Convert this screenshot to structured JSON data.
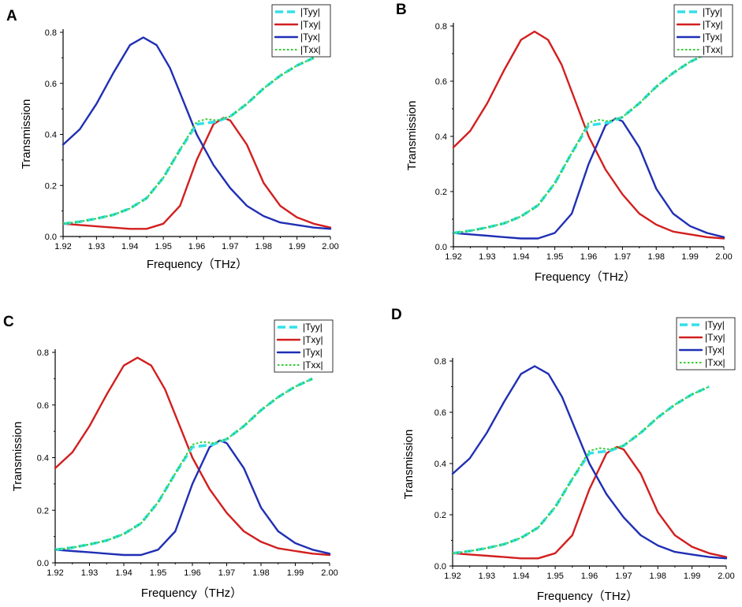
{
  "chart_data": [
    {
      "panel": "A",
      "type": "line",
      "xlabel": "Frequency（THz）",
      "ylabel": "Transmission",
      "xlim": [
        1.92,
        2.0
      ],
      "ylim": [
        0,
        0.8
      ],
      "xticks": [
        "1.92",
        "1.93",
        "1.94",
        "1.95",
        "1.96",
        "1.97",
        "1.98",
        "1.99",
        "2.00"
      ],
      "yticks": [
        "0.0",
        "0.2",
        "0.4",
        "0.6",
        "0.8"
      ],
      "legend_position": "top-right",
      "colors": {
        "Tyy": "#33e0e8",
        "Txy": "#d21f1f",
        "Tyx": "#1f2fb4",
        "Txx": "#33cc33"
      },
      "series": [
        {
          "name": "|Tyy|",
          "key": "Tyy",
          "x": [
            1.92,
            1.925,
            1.93,
            1.935,
            1.94,
            1.945,
            1.95,
            1.955,
            1.96,
            1.963,
            1.966,
            1.97,
            1.975,
            1.98,
            1.985,
            1.99,
            1.995
          ],
          "values": [
            0.05,
            0.058,
            0.07,
            0.085,
            0.11,
            0.15,
            0.23,
            0.34,
            0.44,
            0.445,
            0.45,
            0.47,
            0.52,
            0.58,
            0.63,
            0.67,
            0.7
          ]
        },
        {
          "name": "|Txy|",
          "key": "Txy",
          "x": [
            1.92,
            1.925,
            1.93,
            1.935,
            1.94,
            1.945,
            1.95,
            1.955,
            1.96,
            1.965,
            1.968,
            1.97,
            1.975,
            1.98,
            1.985,
            1.99,
            1.995,
            2.0
          ],
          "values": [
            0.05,
            0.045,
            0.04,
            0.035,
            0.03,
            0.03,
            0.05,
            0.12,
            0.3,
            0.44,
            0.465,
            0.455,
            0.36,
            0.21,
            0.12,
            0.075,
            0.05,
            0.035
          ]
        },
        {
          "name": "|Tyx|",
          "key": "Tyx",
          "x": [
            1.92,
            1.925,
            1.93,
            1.935,
            1.94,
            1.944,
            1.948,
            1.952,
            1.956,
            1.96,
            1.965,
            1.97,
            1.975,
            1.98,
            1.985,
            1.99,
            1.995,
            2.0
          ],
          "values": [
            0.36,
            0.42,
            0.52,
            0.64,
            0.75,
            0.78,
            0.75,
            0.66,
            0.53,
            0.4,
            0.28,
            0.19,
            0.12,
            0.08,
            0.055,
            0.045,
            0.035,
            0.03
          ]
        },
        {
          "name": "|Txx|",
          "key": "Txx",
          "x": [
            1.92,
            1.925,
            1.93,
            1.935,
            1.94,
            1.945,
            1.95,
            1.955,
            1.96,
            1.963,
            1.966,
            1.97,
            1.975,
            1.98,
            1.985,
            1.99,
            1.995
          ],
          "values": [
            0.05,
            0.058,
            0.07,
            0.085,
            0.11,
            0.15,
            0.23,
            0.34,
            0.45,
            0.46,
            0.455,
            0.47,
            0.52,
            0.58,
            0.63,
            0.67,
            0.7
          ]
        }
      ]
    },
    {
      "panel": "B",
      "type": "line",
      "xlabel": "Frequency（THz）",
      "ylabel": "Transmission",
      "xlim": [
        1.92,
        2.0
      ],
      "ylim": [
        0,
        0.8
      ],
      "xticks": [
        "1.92",
        "1.93",
        "1.94",
        "1.95",
        "1.96",
        "1.97",
        "1.98",
        "1.99",
        "2.00"
      ],
      "yticks": [
        "0.0",
        "0.2",
        "0.4",
        "0.6",
        "0.8"
      ],
      "legend_position": "top-right",
      "colors": {
        "Tyy": "#33e0e8",
        "Txy": "#d21f1f",
        "Tyx": "#1f2fb4",
        "Txx": "#33cc33"
      },
      "series": [
        {
          "name": "|Tyy|",
          "key": "Tyy",
          "x": [
            1.92,
            1.925,
            1.93,
            1.935,
            1.94,
            1.945,
            1.95,
            1.955,
            1.96,
            1.963,
            1.966,
            1.97,
            1.975,
            1.98,
            1.985,
            1.99,
            1.995
          ],
          "values": [
            0.05,
            0.058,
            0.07,
            0.085,
            0.11,
            0.15,
            0.23,
            0.34,
            0.44,
            0.445,
            0.45,
            0.47,
            0.52,
            0.58,
            0.63,
            0.67,
            0.7
          ]
        },
        {
          "name": "|Txy|",
          "key": "Txy",
          "x": [
            1.92,
            1.925,
            1.93,
            1.935,
            1.94,
            1.944,
            1.948,
            1.952,
            1.956,
            1.96,
            1.965,
            1.97,
            1.975,
            1.98,
            1.985,
            1.99,
            1.995,
            2.0
          ],
          "values": [
            0.36,
            0.42,
            0.52,
            0.64,
            0.75,
            0.78,
            0.75,
            0.66,
            0.53,
            0.4,
            0.28,
            0.19,
            0.12,
            0.08,
            0.055,
            0.045,
            0.035,
            0.03
          ]
        },
        {
          "name": "|Tyx|",
          "key": "Tyx",
          "x": [
            1.92,
            1.925,
            1.93,
            1.935,
            1.94,
            1.945,
            1.95,
            1.955,
            1.96,
            1.965,
            1.968,
            1.97,
            1.975,
            1.98,
            1.985,
            1.99,
            1.995,
            2.0
          ],
          "values": [
            0.05,
            0.045,
            0.04,
            0.035,
            0.03,
            0.03,
            0.05,
            0.12,
            0.3,
            0.44,
            0.465,
            0.455,
            0.36,
            0.21,
            0.12,
            0.075,
            0.05,
            0.035
          ]
        },
        {
          "name": "|Txx|",
          "key": "Txx",
          "x": [
            1.92,
            1.925,
            1.93,
            1.935,
            1.94,
            1.945,
            1.95,
            1.955,
            1.96,
            1.963,
            1.966,
            1.97,
            1.975,
            1.98,
            1.985,
            1.99,
            1.995
          ],
          "values": [
            0.05,
            0.058,
            0.07,
            0.085,
            0.11,
            0.15,
            0.23,
            0.34,
            0.45,
            0.46,
            0.455,
            0.47,
            0.52,
            0.58,
            0.63,
            0.67,
            0.7
          ]
        }
      ]
    },
    {
      "panel": "C",
      "type": "line",
      "xlabel": "Frequency（THz）",
      "ylabel": "Transmission",
      "xlim": [
        1.92,
        2.0
      ],
      "ylim": [
        0,
        0.8
      ],
      "xticks": [
        "1.92",
        "1.93",
        "1.94",
        "1.95",
        "1.96",
        "1.97",
        "1.98",
        "1.99",
        "2.00"
      ],
      "yticks": [
        "0.0",
        "0.2",
        "0.4",
        "0.6",
        "0.8"
      ],
      "legend_position": "top-right",
      "colors": {
        "Tyy": "#33e0e8",
        "Txy": "#d21f1f",
        "Tyx": "#1f2fb4",
        "Txx": "#33cc33"
      },
      "series": [
        {
          "name": "|Tyy|",
          "key": "Tyy",
          "x": [
            1.92,
            1.925,
            1.93,
            1.935,
            1.94,
            1.945,
            1.95,
            1.955,
            1.96,
            1.963,
            1.966,
            1.97,
            1.975,
            1.98,
            1.985,
            1.99,
            1.995
          ],
          "values": [
            0.05,
            0.058,
            0.07,
            0.085,
            0.11,
            0.15,
            0.23,
            0.34,
            0.44,
            0.445,
            0.45,
            0.47,
            0.52,
            0.58,
            0.63,
            0.67,
            0.7
          ]
        },
        {
          "name": "|Txy|",
          "key": "Txy",
          "x": [
            1.92,
            1.925,
            1.93,
            1.935,
            1.94,
            1.944,
            1.948,
            1.952,
            1.956,
            1.96,
            1.965,
            1.97,
            1.975,
            1.98,
            1.985,
            1.99,
            1.995,
            2.0
          ],
          "values": [
            0.36,
            0.42,
            0.52,
            0.64,
            0.75,
            0.78,
            0.75,
            0.66,
            0.53,
            0.4,
            0.28,
            0.19,
            0.12,
            0.08,
            0.055,
            0.045,
            0.035,
            0.03
          ]
        },
        {
          "name": "|Tyx|",
          "key": "Tyx",
          "x": [
            1.92,
            1.925,
            1.93,
            1.935,
            1.94,
            1.945,
            1.95,
            1.955,
            1.96,
            1.965,
            1.968,
            1.97,
            1.975,
            1.98,
            1.985,
            1.99,
            1.995,
            2.0
          ],
          "values": [
            0.05,
            0.045,
            0.04,
            0.035,
            0.03,
            0.03,
            0.05,
            0.12,
            0.3,
            0.44,
            0.465,
            0.455,
            0.36,
            0.21,
            0.12,
            0.075,
            0.05,
            0.035
          ]
        },
        {
          "name": "|Txx|",
          "key": "Txx",
          "x": [
            1.92,
            1.925,
            1.93,
            1.935,
            1.94,
            1.945,
            1.95,
            1.955,
            1.96,
            1.963,
            1.966,
            1.97,
            1.975,
            1.98,
            1.985,
            1.99,
            1.995
          ],
          "values": [
            0.05,
            0.058,
            0.07,
            0.085,
            0.11,
            0.15,
            0.23,
            0.34,
            0.45,
            0.46,
            0.455,
            0.47,
            0.52,
            0.58,
            0.63,
            0.67,
            0.7
          ]
        }
      ]
    },
    {
      "panel": "D",
      "type": "line",
      "xlabel": "Frequency（THz）",
      "ylabel": "Transmission",
      "xlim": [
        1.92,
        2.0
      ],
      "ylim": [
        0,
        0.8
      ],
      "xticks": [
        "1.92",
        "1.93",
        "1.94",
        "1.95",
        "1.96",
        "1.97",
        "1.98",
        "1.99",
        "2.00"
      ],
      "yticks": [
        "0.0",
        "0.2",
        "0.4",
        "0.6",
        "0.8"
      ],
      "legend_position": "top-right",
      "colors": {
        "Tyy": "#33e0e8",
        "Txy": "#d21f1f",
        "Tyx": "#1f2fb4",
        "Txx": "#33cc33"
      },
      "series": [
        {
          "name": "|Tyy|",
          "key": "Tyy",
          "x": [
            1.92,
            1.925,
            1.93,
            1.935,
            1.94,
            1.945,
            1.95,
            1.955,
            1.96,
            1.963,
            1.966,
            1.97,
            1.975,
            1.98,
            1.985,
            1.99,
            1.995
          ],
          "values": [
            0.05,
            0.058,
            0.07,
            0.085,
            0.11,
            0.15,
            0.23,
            0.34,
            0.44,
            0.445,
            0.45,
            0.47,
            0.52,
            0.58,
            0.63,
            0.67,
            0.7
          ]
        },
        {
          "name": "|Txy|",
          "key": "Txy",
          "x": [
            1.92,
            1.925,
            1.93,
            1.935,
            1.94,
            1.945,
            1.95,
            1.955,
            1.96,
            1.965,
            1.968,
            1.97,
            1.975,
            1.98,
            1.985,
            1.99,
            1.995,
            2.0
          ],
          "values": [
            0.05,
            0.045,
            0.04,
            0.035,
            0.03,
            0.03,
            0.05,
            0.12,
            0.3,
            0.44,
            0.465,
            0.455,
            0.36,
            0.21,
            0.12,
            0.075,
            0.05,
            0.035
          ]
        },
        {
          "name": "|Tyx|",
          "key": "Tyx",
          "x": [
            1.92,
            1.925,
            1.93,
            1.935,
            1.94,
            1.944,
            1.948,
            1.952,
            1.956,
            1.96,
            1.965,
            1.97,
            1.975,
            1.98,
            1.985,
            1.99,
            1.995,
            2.0
          ],
          "values": [
            0.36,
            0.42,
            0.52,
            0.64,
            0.75,
            0.78,
            0.75,
            0.66,
            0.53,
            0.4,
            0.28,
            0.19,
            0.12,
            0.08,
            0.055,
            0.045,
            0.035,
            0.03
          ]
        },
        {
          "name": "|Txx|",
          "key": "Txx",
          "x": [
            1.92,
            1.925,
            1.93,
            1.935,
            1.94,
            1.945,
            1.95,
            1.955,
            1.96,
            1.963,
            1.966,
            1.97,
            1.975,
            1.98,
            1.985,
            1.99,
            1.995
          ],
          "values": [
            0.05,
            0.058,
            0.07,
            0.085,
            0.11,
            0.15,
            0.23,
            0.34,
            0.45,
            0.46,
            0.455,
            0.47,
            0.52,
            0.58,
            0.63,
            0.67,
            0.7
          ]
        }
      ]
    }
  ]
}
